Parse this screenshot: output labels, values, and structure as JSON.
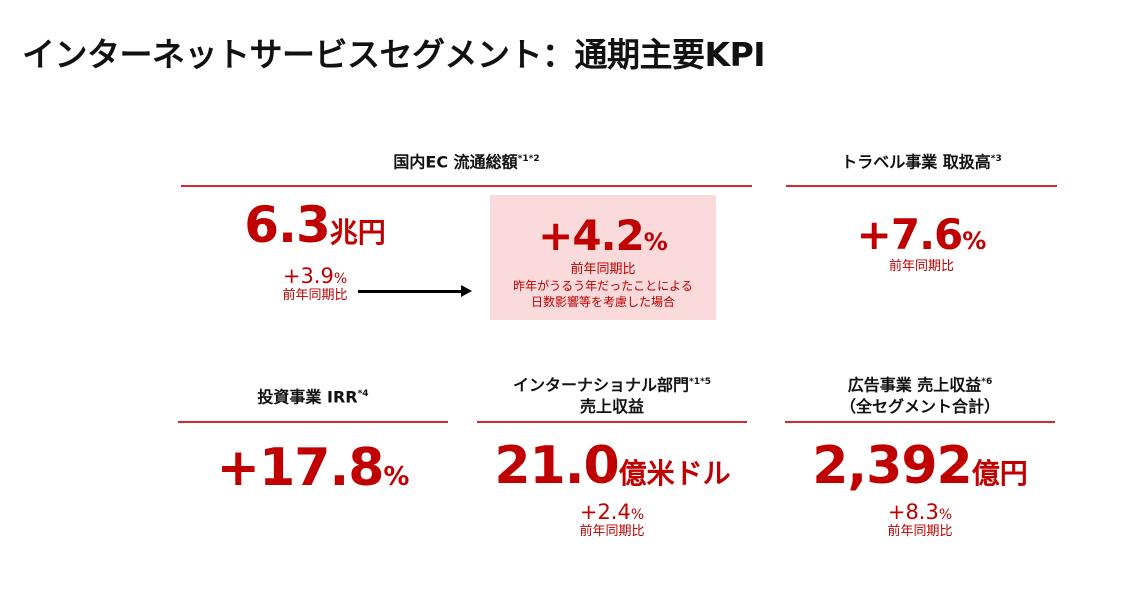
{
  "title": "インターネットサービスセグメント：通期主要KPI",
  "ec": {
    "header": "国内EC 流通総額",
    "note": "*1*2",
    "value": "6.3",
    "unit": "兆円",
    "yoy": "+3.9",
    "pct": "%",
    "yoy_label": "前年同期比",
    "adj_value": "+4.2",
    "adj_pct": "%",
    "adj_label": "前年同期比",
    "adj_note1": "昨年がうるう年だったことによる",
    "adj_note2": "日数影響等を考慮した場合"
  },
  "travel": {
    "header": "トラベル事業 取扱高",
    "note": "*3",
    "value": "+7.6",
    "pct": "%",
    "yoy_label": "前年同期比"
  },
  "invest": {
    "header": "投資事業 IRR",
    "note": "*4",
    "value": "+17.8",
    "pct": "%"
  },
  "intl": {
    "header1": "インターナショナル部門",
    "note": "*1*5",
    "header2": "売上収益",
    "value": "21.0",
    "unit": "億米ドル",
    "yoy": "+2.4",
    "pct": "%",
    "yoy_label": "前年同期比"
  },
  "ads": {
    "header1": "広告事業 売上収益",
    "note": "*6",
    "header2": "（全セグメント合計）",
    "value": "2,392",
    "unit": "億円",
    "yoy": "+8.3",
    "pct": "%",
    "yoy_label": "前年同期比"
  }
}
